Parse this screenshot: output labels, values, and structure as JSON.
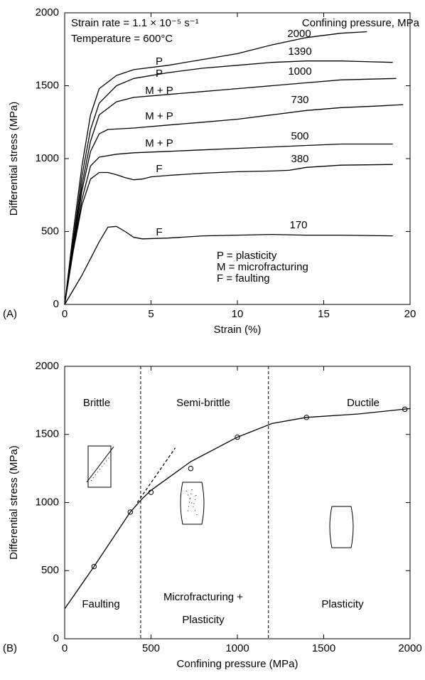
{
  "chart_data": [
    {
      "type": "line",
      "panel_label": "(A)",
      "x_label": "Strain (%)",
      "y_label": "Differential stress (MPa)",
      "xlim": [
        0,
        20
      ],
      "ylim": [
        0,
        2000
      ],
      "xticks": [
        0,
        5,
        10,
        15,
        20
      ],
      "yticks": [
        0,
        500,
        1000,
        1500,
        2000
      ],
      "annotations": [
        "Strain rate = 1.1 × 10⁻⁵ s⁻¹",
        "Temperature = 600°C",
        "Confining pressure, MPa",
        "P",
        "P",
        "M + P",
        "M + P",
        "M + P",
        "F",
        "F",
        "P = plasticity",
        "M = microfracturing",
        "F = faulting"
      ],
      "series": [
        {
          "name": "2000",
          "color": "#000000",
          "x": [
            0,
            0.5,
            1,
            1.5,
            2,
            3,
            4,
            6,
            8,
            10,
            12,
            14,
            16,
            17.5
          ],
          "values": [
            0,
            500,
            950,
            1300,
            1480,
            1570,
            1610,
            1640,
            1680,
            1720,
            1780,
            1830,
            1860,
            1870
          ]
        },
        {
          "name": "1390",
          "color": "#000000",
          "x": [
            0,
            0.5,
            1,
            1.5,
            2,
            3,
            4,
            6,
            8,
            10,
            12,
            14,
            16,
            19
          ],
          "values": [
            0,
            450,
            880,
            1200,
            1380,
            1500,
            1550,
            1590,
            1620,
            1640,
            1660,
            1670,
            1670,
            1660
          ]
        },
        {
          "name": "1000",
          "color": "#000000",
          "x": [
            0,
            0.5,
            1,
            1.5,
            2,
            3,
            4,
            6,
            8,
            10,
            12,
            14,
            16,
            19.2
          ],
          "values": [
            0,
            420,
            820,
            1120,
            1300,
            1390,
            1420,
            1440,
            1460,
            1480,
            1500,
            1520,
            1540,
            1550
          ]
        },
        {
          "name": "730",
          "color": "#000000",
          "x": [
            0,
            0.5,
            1,
            1.5,
            2,
            2.5,
            4,
            6,
            8,
            10,
            12,
            14,
            16,
            18,
            19.6
          ],
          "values": [
            0,
            400,
            780,
            1050,
            1170,
            1200,
            1210,
            1230,
            1250,
            1270,
            1300,
            1330,
            1350,
            1360,
            1370
          ]
        },
        {
          "name": "500",
          "color": "#000000",
          "x": [
            0,
            0.5,
            1,
            1.5,
            2,
            3,
            4,
            6,
            8,
            10,
            12,
            14,
            16,
            19
          ],
          "values": [
            0,
            380,
            720,
            950,
            1010,
            1030,
            1040,
            1050,
            1060,
            1070,
            1080,
            1090,
            1100,
            1100
          ]
        },
        {
          "name": "380",
          "color": "#000000",
          "x": [
            0,
            0.5,
            1,
            1.5,
            2,
            2.5,
            3,
            3.5,
            4,
            4.5,
            5,
            6,
            8,
            10,
            12,
            13,
            14,
            16,
            19
          ],
          "values": [
            0,
            370,
            680,
            860,
            905,
            905,
            890,
            870,
            855,
            860,
            875,
            885,
            900,
            910,
            915,
            920,
            940,
            955,
            960
          ]
        },
        {
          "name": "170",
          "color": "#000000",
          "x": [
            0,
            1,
            2,
            2.5,
            3,
            3.5,
            4,
            4.5,
            6,
            8,
            10,
            12,
            14,
            16,
            19
          ],
          "values": [
            0,
            200,
            430,
            530,
            535,
            500,
            460,
            450,
            455,
            470,
            475,
            480,
            475,
            475,
            470
          ]
        }
      ]
    },
    {
      "type": "line",
      "panel_label": "(B)",
      "x_label": "Confining pressure (MPa)",
      "y_label": "Differential stress (MPa)",
      "xlim": [
        0,
        2000
      ],
      "ylim": [
        0,
        2000
      ],
      "xticks": [
        0,
        500,
        1000,
        1500,
        2000
      ],
      "yticks": [
        0,
        500,
        1000,
        1500,
        2000
      ],
      "annotations": [
        "Brittle",
        "Semi-brittle",
        "Ductile",
        "Faulting",
        "Microfracturing +",
        "Plasticity",
        "Plasticity"
      ],
      "series": [
        {
          "color": "#000000",
          "marker": "circle",
          "x": [
            170,
            380,
            500,
            730,
            1000,
            1400,
            1970
          ],
          "values": [
            530,
            930,
            1075,
            1250,
            1480,
            1625,
            1685
          ]
        },
        {
          "color": "#000000",
          "x": [
            0,
            170,
            380,
            450,
            500,
            730,
            1000,
            1200,
            1400,
            1700,
            2000
          ],
          "values": [
            220,
            530,
            930,
            1030,
            1090,
            1300,
            1480,
            1580,
            1625,
            1650,
            1690
          ]
        },
        {
          "color": "#000000",
          "dashed": true,
          "x": [
            420,
            640
          ],
          "values": [
            1000,
            1400
          ]
        }
      ],
      "vlines": [
        440,
        1180
      ]
    }
  ]
}
